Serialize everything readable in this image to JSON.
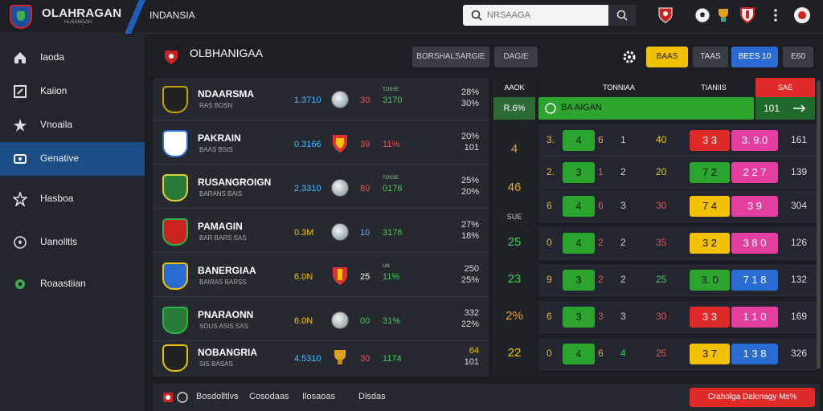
{
  "header": {
    "brand": "OLAHRAGAN",
    "brand_sub": "HUSANGAH",
    "nav_title": "INDANSIA",
    "search_placeholder": "NRSAAGA",
    "colors": {
      "accent": "#1d4d86",
      "brand_red": "#d22222"
    }
  },
  "sidebar": {
    "items": [
      {
        "label": "Iaoda",
        "icon": "home-icon"
      },
      {
        "label": "Kaiion",
        "icon": "edit-icon"
      },
      {
        "label": "Vnoaila",
        "icon": "star-icon"
      },
      {
        "label": "Genative",
        "icon": "sport-icon",
        "active": true
      },
      {
        "label": "Hasboa",
        "icon": "star-outline-icon"
      },
      {
        "label": "Uanolltls",
        "icon": "soccer-ball-icon"
      },
      {
        "label": "Roaastiian",
        "icon": "settings-icon"
      }
    ]
  },
  "panel": {
    "title": "OLBHANIGAA",
    "buttons": [
      "BORSHALSARGIE",
      "DAGIE"
    ],
    "right_buttons": [
      "BAAS",
      "TAAS",
      "BEES 10",
      "E60"
    ]
  },
  "matches": [
    {
      "name": "NDAARSMA",
      "meta": "RAS BOSN",
      "odd": "1.3710",
      "n2": "30",
      "small": "TOSSE",
      "n3": "3170",
      "pct": "28%",
      "pct2": "30%",
      "badge": "#c9a300"
    },
    {
      "name": "PAKRAIN",
      "meta": "BAAS BSIS",
      "odd": "0.3166",
      "n2": "39",
      "small": "",
      "n3": "11%",
      "pct": "20%",
      "pct2": "101",
      "badge": "#2a6bd1"
    },
    {
      "name": "RUSANGROIGN",
      "meta": "BARANS BAIS",
      "odd": "2.3310",
      "n2": "80",
      "small": "TOSSE",
      "n3": "0176",
      "pct": "25%",
      "pct2": "20%",
      "badge": "#3fb04a"
    },
    {
      "name": "PAMAGIN",
      "meta": "BAR BARS SAS",
      "odd": "0.3M",
      "n2": "10",
      "small": "",
      "n3": "3176",
      "pct": "27%",
      "pct2": "18%",
      "badge": "#2cb34a"
    },
    {
      "name": "BANERGIAA",
      "meta": "BAIRAS BARSS",
      "odd": "6.0N",
      "n2": "25",
      "small": "UN",
      "n3": "11%",
      "pct": "250",
      "pct2": "25%",
      "badge": "#f0c400"
    },
    {
      "name": "PNARAONN",
      "meta": "SOUS ASIS SAS",
      "odd": "6.0N",
      "n2": "00",
      "small": "",
      "n3": "31%",
      "pct": "332",
      "pct2": "22%",
      "badge": "#2cb34a"
    },
    {
      "name": "NOBANGRIA",
      "meta": "SIS BASAS",
      "odd": "4.5310",
      "n2": "30",
      "small": "",
      "n3": "1174",
      "pct": "64",
      "pct2": "101",
      "badge": "#e8c200"
    }
  ],
  "table": {
    "headers": [
      "AAOK",
      "TONNIAA",
      "TIANIIS",
      "SAE"
    ],
    "top_row": {
      "left": "R.6%",
      "label": "BA AIGAN",
      "right": "101"
    },
    "mid_values": [
      "4",
      "46",
      "25",
      "23",
      "2%",
      "22"
    ],
    "mid_label": "SUE",
    "rows": [
      {
        "a": "3.",
        "b": "4",
        "c": "6",
        "d": "1",
        "e": "40",
        "f": "3 3",
        "g": "3. 9.0",
        "h": "161"
      },
      {
        "a": "2.",
        "b": "3",
        "c": "1",
        "d": "2",
        "e": "20",
        "f": "7 2",
        "g": "2 2 7",
        "h": "139"
      },
      {
        "a": "6",
        "b": "4",
        "c": "6",
        "d": "3",
        "e": "30",
        "f": "7 4",
        "g": "3 9",
        "h": "304"
      },
      {
        "a": "0",
        "b": "4",
        "c": "2",
        "d": "2",
        "e": "35",
        "f": "3 2",
        "g": "3 8 0",
        "h": "126"
      },
      {
        "a": "9",
        "b": "3",
        "c": "2",
        "d": "2",
        "e": "25",
        "f": "3. 0",
        "g": "7 1 8",
        "h": "132"
      },
      {
        "a": "6",
        "b": "3",
        "c": "3",
        "d": "3",
        "e": "30",
        "f": "3 3",
        "g": "1 1 0",
        "h": "169"
      },
      {
        "a": "0",
        "b": "4",
        "c": "6",
        "d": "4",
        "e": "25",
        "f": "3 7",
        "g": "1 3 8",
        "h": "326"
      }
    ]
  },
  "footer": {
    "items": [
      "Bosdolltlvs",
      "Cosodaas",
      "Ilosaoas",
      "Dlsdas"
    ],
    "alert": "Craholga Dalonagy Ms%"
  }
}
